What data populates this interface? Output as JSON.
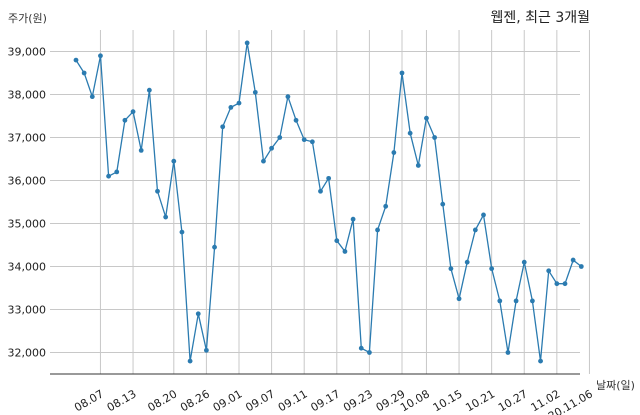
{
  "chart_data": {
    "type": "line",
    "title": "웹젠, 최근 3개월",
    "ylabel": "주가(원)",
    "xlabel": "날짜(일)",
    "ylim": [
      31500,
      39500
    ],
    "yticks": [
      32000,
      33000,
      34000,
      35000,
      36000,
      37000,
      38000,
      39000
    ],
    "ytick_labels": [
      "32,000",
      "33,000",
      "34,000",
      "35,000",
      "36,000",
      "37,000",
      "38,000",
      "39,000"
    ],
    "xticks": [
      {
        "label": "08.07",
        "index": 3
      },
      {
        "label": "08.13",
        "index": 7
      },
      {
        "label": "08.20",
        "index": 12
      },
      {
        "label": "08.26",
        "index": 16
      },
      {
        "label": "09.01",
        "index": 20
      },
      {
        "label": "09.07",
        "index": 24
      },
      {
        "label": "09.11",
        "index": 28
      },
      {
        "label": "09.17",
        "index": 32
      },
      {
        "label": "09.23",
        "index": 36
      },
      {
        "label": "09.29",
        "index": 40
      },
      {
        "label": "10.08",
        "index": 43
      },
      {
        "label": "10.15",
        "index": 47
      },
      {
        "label": "10.21",
        "index": 51
      },
      {
        "label": "10.27",
        "index": 55
      },
      {
        "label": "11.02",
        "index": 59
      },
      {
        "label": "20.11.06",
        "index": 63
      }
    ],
    "grid": true,
    "color": "#2b7bb0",
    "values": [
      38800,
      38500,
      37950,
      38900,
      36100,
      36200,
      37400,
      37600,
      36700,
      38100,
      35750,
      35150,
      36450,
      34800,
      31800,
      32900,
      32050,
      34450,
      37250,
      37700,
      37800,
      39200,
      38050,
      36450,
      36750,
      37000,
      37950,
      37400,
      36950,
      36900,
      35750,
      36050,
      34600,
      34350,
      35100,
      32100,
      32000,
      34850,
      35400,
      36650,
      38500,
      37100,
      36350,
      37450,
      37000,
      35450,
      33950,
      33250,
      34100,
      34850,
      35200,
      33950,
      33200,
      32000,
      33200,
      34100,
      33200,
      31800,
      33900,
      33600,
      33600,
      34150,
      34000
    ]
  }
}
